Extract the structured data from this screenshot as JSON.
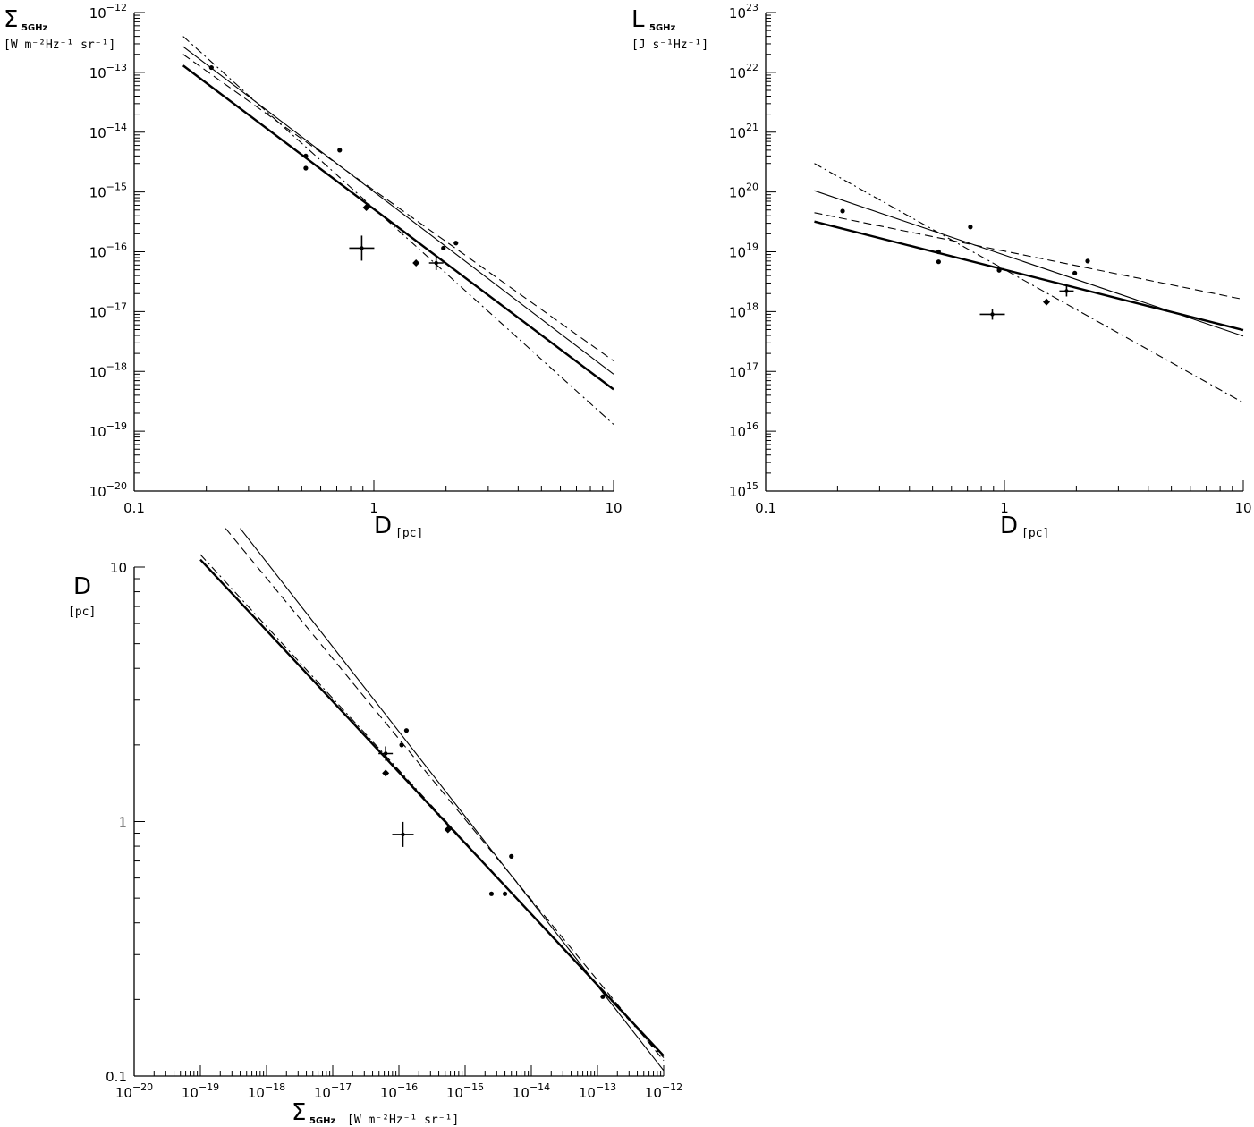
{
  "chart_data": [
    {
      "id": "sigma-d",
      "type": "scatter",
      "x_scale": "log",
      "y_scale": "log",
      "xlim": [
        0.1,
        10
      ],
      "ylim": [
        1e-20,
        1e-12
      ],
      "x_ticks": [
        {
          "value": 0.1,
          "label": "0.1"
        },
        {
          "value": 1,
          "label": "1"
        },
        {
          "value": 10,
          "label": "10"
        }
      ],
      "y_ticks": [
        {
          "value": 1e-20,
          "base": "10",
          "exp": "−20"
        },
        {
          "value": 1e-19,
          "base": "10",
          "exp": "−19"
        },
        {
          "value": 1e-18,
          "base": "10",
          "exp": "−18"
        },
        {
          "value": 1e-17,
          "base": "10",
          "exp": "−17"
        },
        {
          "value": 1e-16,
          "base": "10",
          "exp": "−16"
        },
        {
          "value": 1e-15,
          "base": "10",
          "exp": "−15"
        },
        {
          "value": 1e-14,
          "base": "10",
          "exp": "−14"
        },
        {
          "value": 1e-13,
          "base": "10",
          "exp": "−13"
        },
        {
          "value": 1e-12,
          "base": "10",
          "exp": "−12"
        }
      ],
      "xlabel": {
        "symbol": "D",
        "unit": "[pc]"
      },
      "ylabel": {
        "symbol": "Σ",
        "sub": "5GHz",
        "unit": "[W m⁻²Hz⁻¹ sr⁻¹]"
      },
      "points": [
        {
          "x": 0.21,
          "y": 1.2e-13
        },
        {
          "x": 0.52,
          "y": 4e-15
        },
        {
          "x": 0.52,
          "y": 2.5e-15
        },
        {
          "x": 0.72,
          "y": 5e-15
        },
        {
          "x": 1.95,
          "y": 1.15e-16
        },
        {
          "x": 2.2,
          "y": 1.4e-16
        }
      ],
      "diamonds": [
        {
          "x": 0.93,
          "y": 5.5e-16
        },
        {
          "x": 1.5,
          "y": 6.5e-17
        }
      ],
      "crosses": [
        {
          "x": 0.89,
          "y": 1.15e-16,
          "dx": 14,
          "dy": 14
        },
        {
          "x": 1.82,
          "y": 6.5e-17,
          "dx": 8,
          "dy": 8
        }
      ],
      "lines": [
        {
          "style": "thick",
          "x1": 0.16,
          "y1": 1.3e-13,
          "x2": 10,
          "y2": 5e-19
        },
        {
          "style": "thin",
          "x1": 0.16,
          "y1": 2.7e-13,
          "x2": 10,
          "y2": 9e-19
        },
        {
          "style": "dashed",
          "x1": 0.16,
          "y1": 2e-13,
          "x2": 10,
          "y2": 1.5e-18
        },
        {
          "style": "dashdot",
          "x1": 0.16,
          "y1": 4e-13,
          "x2": 10,
          "y2": 1.3e-19
        }
      ]
    },
    {
      "id": "l-d",
      "type": "scatter",
      "x_scale": "log",
      "y_scale": "log",
      "xlim": [
        0.1,
        10
      ],
      "ylim": [
        1000000000000000.0,
        1e+23
      ],
      "x_ticks": [
        {
          "value": 0.1,
          "label": "0.1"
        },
        {
          "value": 1,
          "label": "1"
        },
        {
          "value": 10,
          "label": "10"
        }
      ],
      "y_ticks": [
        {
          "value": 1000000000000000.0,
          "base": "10",
          "exp": "15"
        },
        {
          "value": 1e+16,
          "base": "10",
          "exp": "16"
        },
        {
          "value": 1e+17,
          "base": "10",
          "exp": "17"
        },
        {
          "value": 1e+18,
          "base": "10",
          "exp": "18"
        },
        {
          "value": 1e+19,
          "base": "10",
          "exp": "19"
        },
        {
          "value": 1e+20,
          "base": "10",
          "exp": "20"
        },
        {
          "value": 1e+21,
          "base": "10",
          "exp": "21"
        },
        {
          "value": 1e+22,
          "base": "10",
          "exp": "22"
        },
        {
          "value": 1e+23,
          "base": "10",
          "exp": "23"
        }
      ],
      "xlabel": {
        "symbol": "D",
        "unit": "[pc]"
      },
      "ylabel": {
        "symbol": "L",
        "sub": "5GHz",
        "unit": "[J s⁻¹Hz⁻¹]"
      },
      "points": [
        {
          "x": 0.21,
          "y": 4.8e+19
        },
        {
          "x": 0.53,
          "y": 1e+19
        },
        {
          "x": 0.53,
          "y": 6.8e+18
        },
        {
          "x": 0.72,
          "y": 2.6e+19
        },
        {
          "x": 0.95,
          "y": 4.9e+18
        },
        {
          "x": 1.97,
          "y": 4.4e+18
        },
        {
          "x": 2.23,
          "y": 7e+18
        }
      ],
      "diamonds": [
        {
          "x": 1.5,
          "y": 1.45e+18
        }
      ],
      "crosses": [
        {
          "x": 0.89,
          "y": 9e+17,
          "dx": 14,
          "dy": 6
        },
        {
          "x": 1.82,
          "y": 2.2e+18,
          "dx": 8,
          "dy": 6
        }
      ],
      "lines": [
        {
          "style": "thick",
          "x1": 0.16,
          "y1": 3.2e+19,
          "x2": 10,
          "y2": 4.9e+17
        },
        {
          "style": "thin",
          "x1": 0.16,
          "y1": 1.05e+20,
          "x2": 10,
          "y2": 3.9e+17
        },
        {
          "style": "dashed",
          "x1": 0.16,
          "y1": 4.5e+19,
          "x2": 10,
          "y2": 1.6e+18
        },
        {
          "style": "dashdot",
          "x1": 0.16,
          "y1": 3e+20,
          "x2": 10,
          "y2": 3e+16
        }
      ]
    },
    {
      "id": "d-sigma",
      "type": "scatter",
      "x_scale": "log",
      "y_scale": "log",
      "xlim": [
        1e-20,
        1e-12
      ],
      "ylim": [
        0.1,
        10
      ],
      "x_ticks": [
        {
          "value": 1e-20,
          "base": "10",
          "exp": "−20"
        },
        {
          "value": 1e-19,
          "base": "10",
          "exp": "−19"
        },
        {
          "value": 1e-18,
          "base": "10",
          "exp": "−18"
        },
        {
          "value": 1e-17,
          "base": "10",
          "exp": "−17"
        },
        {
          "value": 1e-16,
          "base": "10",
          "exp": "−16"
        },
        {
          "value": 1e-15,
          "base": "10",
          "exp": "−15"
        },
        {
          "value": 1e-14,
          "base": "10",
          "exp": "−14"
        },
        {
          "value": 1e-13,
          "base": "10",
          "exp": "−13"
        },
        {
          "value": 1e-12,
          "base": "10",
          "exp": "−12"
        }
      ],
      "y_ticks": [
        {
          "value": 0.1,
          "label": "0.1"
        },
        {
          "value": 1,
          "label": "1"
        },
        {
          "value": 10,
          "label": "10"
        }
      ],
      "xlabel": {
        "symbol": "Σ",
        "sub": "5GHz",
        "unit": "[W m⁻²Hz⁻¹ sr⁻¹]"
      },
      "ylabel": {
        "symbol": "D",
        "unit": "[pc]"
      },
      "points": [
        {
          "x": 1.1e-16,
          "y": 2.0
        },
        {
          "x": 1.3e-16,
          "y": 2.28
        },
        {
          "x": 2.5e-15,
          "y": 0.52
        },
        {
          "x": 4e-15,
          "y": 0.52
        },
        {
          "x": 5e-15,
          "y": 0.73
        },
        {
          "x": 1.2e-13,
          "y": 0.205
        }
      ],
      "diamonds": [
        {
          "x": 6.3e-17,
          "y": 1.55
        },
        {
          "x": 5.5e-16,
          "y": 0.93
        }
      ],
      "crosses": [
        {
          "x": 6.3e-17,
          "y": 1.85,
          "dx": 8,
          "dy": 8
        },
        {
          "x": 1.15e-16,
          "y": 0.89,
          "dx": 12,
          "dy": 14
        }
      ],
      "lines": [
        {
          "style": "thick",
          "x1": 1e-19,
          "y1": 10.7,
          "x2": 1e-12,
          "y2": 0.12
        },
        {
          "style": "thin",
          "x1": 4e-19,
          "y1": 14.2,
          "x2": 1e-12,
          "y2": 0.105
        },
        {
          "style": "dashed",
          "x1": 2.4e-19,
          "y1": 14.2,
          "x2": 1e-12,
          "y2": 0.115
        },
        {
          "style": "dashdot",
          "x1": 1e-19,
          "y1": 11.2,
          "x2": 1e-12,
          "y2": 0.118
        }
      ]
    }
  ]
}
